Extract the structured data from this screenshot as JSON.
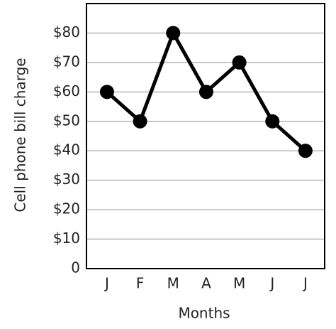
{
  "chart_data": {
    "type": "line",
    "x_label": "Months",
    "y_label": "Cell phone bill charge",
    "categories": [
      "J",
      "F",
      "M",
      "A",
      "M",
      "J",
      "J"
    ],
    "values": [
      60,
      50,
      80,
      60,
      70,
      50,
      40
    ],
    "color": "#000000",
    "ylim": [
      0,
      90
    ],
    "yticks": [
      0,
      {
        "value": 10,
        "label": "$10"
      },
      {
        "value": 20,
        "label": "$20"
      },
      {
        "value": 30,
        "label": "$30"
      },
      {
        "value": 40,
        "label": "$40"
      },
      {
        "value": 50,
        "label": "$50"
      },
      {
        "value": 60,
        "label": "$60"
      },
      {
        "value": 70,
        "label": "$70"
      },
      {
        "value": 80,
        "label": "$80"
      }
    ],
    "grid": true
  }
}
